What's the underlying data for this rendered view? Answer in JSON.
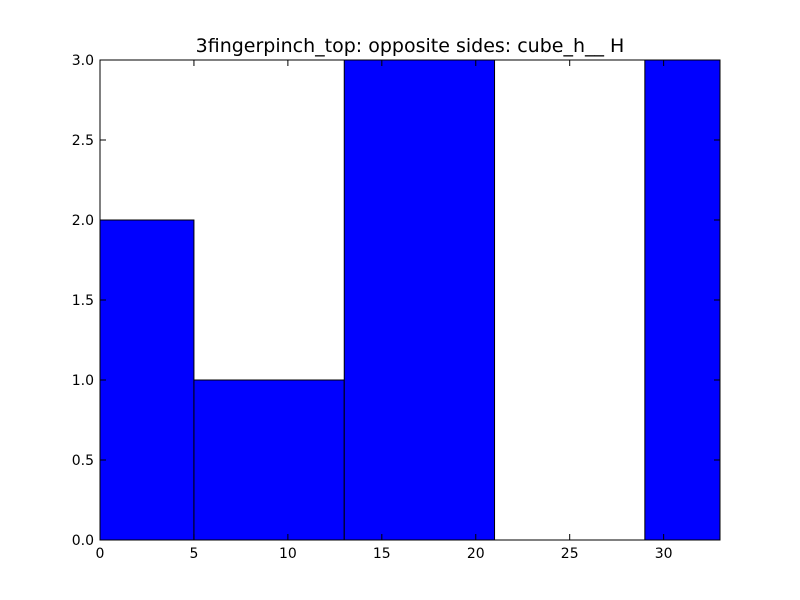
{
  "chart_data": {
    "type": "bar",
    "title": "3fingerpinch_top: opposite sides: cube_h__ H",
    "xlabel": "",
    "ylabel": "",
    "xlim": [
      0,
      33
    ],
    "ylim": [
      0,
      3
    ],
    "xticks": [
      "0",
      "5",
      "10",
      "15",
      "20",
      "25",
      "30"
    ],
    "yticks": [
      "0.0",
      "0.5",
      "1.0",
      "1.5",
      "2.0",
      "2.5",
      "3.0"
    ],
    "bins": [
      {
        "start": 0,
        "end": 5,
        "value": 2
      },
      {
        "start": 5,
        "end": 13,
        "value": 1
      },
      {
        "start": 13,
        "end": 21,
        "value": 3
      },
      {
        "start": 21,
        "end": 29,
        "value": 0
      },
      {
        "start": 29,
        "end": 37,
        "value": 3
      }
    ],
    "grid": false,
    "colors": {
      "bar": "#0000ff",
      "edge": "#000000"
    }
  }
}
